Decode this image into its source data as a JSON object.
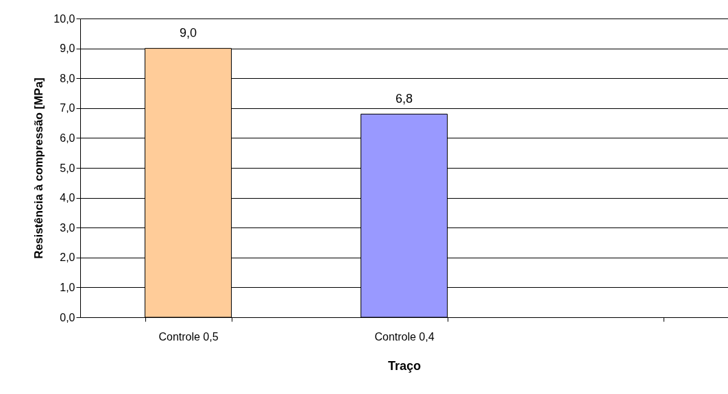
{
  "chart_data": {
    "type": "bar",
    "xlabel": "Traço",
    "ylabel": "Resistência à compressão [MPa]",
    "categories": [
      "Controle 0,5",
      "Controle 0,4",
      null
    ],
    "values": [
      9.0,
      6.8,
      null
    ],
    "colors": [
      "#ffcc99",
      "#9999ff",
      "#9999ff"
    ],
    "value_labels": [
      "9,0",
      "6,8",
      null
    ],
    "ylim": [
      0,
      10
    ],
    "yticks": [
      {
        "value": 0,
        "label": "0,0"
      },
      {
        "value": 1,
        "label": "1,0"
      },
      {
        "value": 2,
        "label": "2,0"
      },
      {
        "value": 3,
        "label": "3,0"
      },
      {
        "value": 4,
        "label": "4,0"
      },
      {
        "value": 5,
        "label": "5,0"
      },
      {
        "value": 6,
        "label": "6,0"
      },
      {
        "value": 7,
        "label": "7,0"
      },
      {
        "value": 8,
        "label": "8,0"
      },
      {
        "value": 9,
        "label": "9,0"
      },
      {
        "value": 10,
        "label": "10,0"
      }
    ],
    "grid": "y"
  }
}
